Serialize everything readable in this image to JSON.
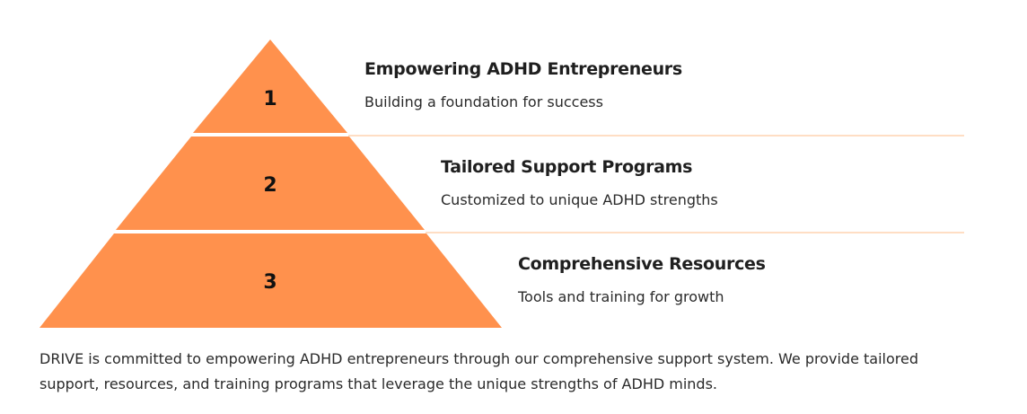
{
  "diagram": {
    "shape": "pyramid",
    "fill_color": "#FF914D",
    "divider_color": "#FFD3B0",
    "tiers": [
      {
        "number": "1",
        "title": "Empowering ADHD Entrepreneurs",
        "description": "Building a foundation for success"
      },
      {
        "number": "2",
        "title": "Tailored Support Programs",
        "description": "Customized to unique ADHD strengths"
      },
      {
        "number": "3",
        "title": "Comprehensive Resources",
        "description": "Tools and training for growth"
      }
    ]
  },
  "summary": "DRIVE is committed to empowering ADHD entrepreneurs through our comprehensive support system. We provide tailored support, resources, and training programs that leverage the unique strengths of ADHD minds."
}
